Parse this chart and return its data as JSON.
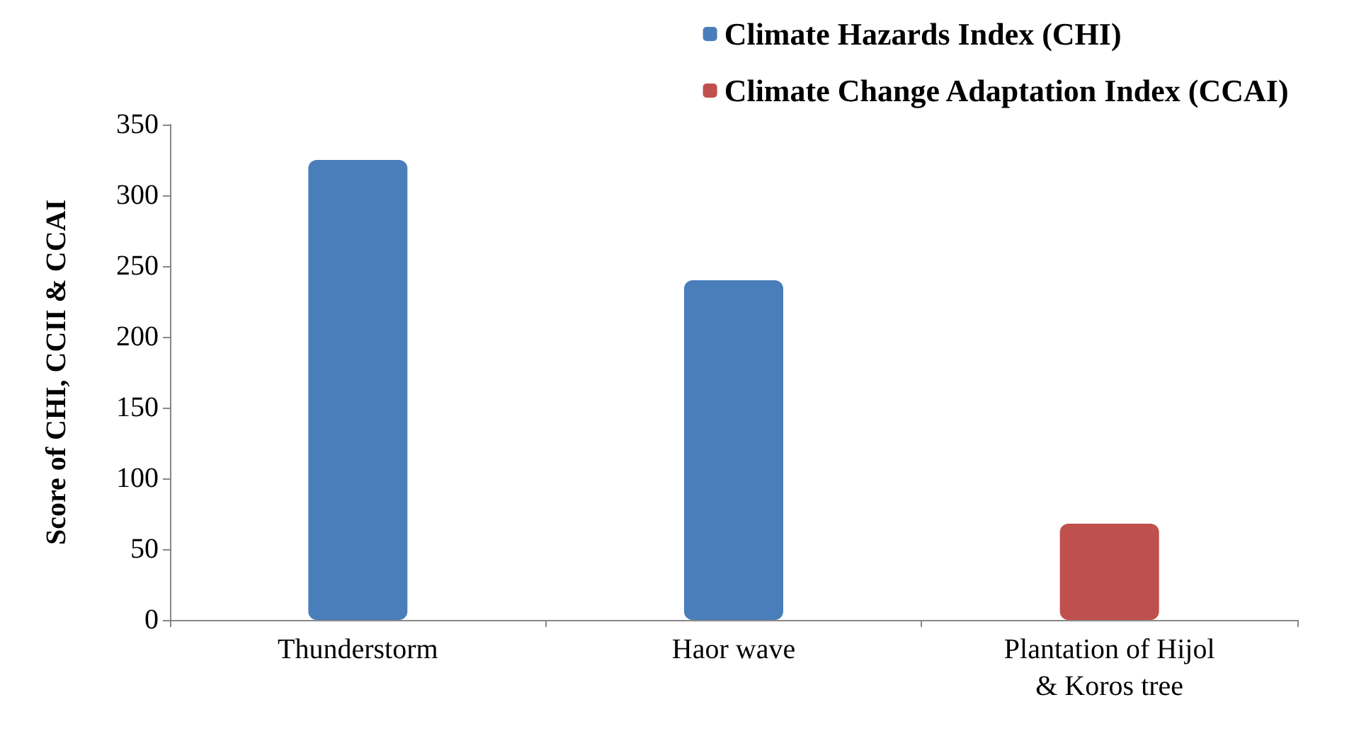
{
  "chart_data": {
    "type": "bar",
    "ylabel": "Score of CHI, CCII & CCAI",
    "categories": [
      "Thunderstorm",
      "Haor wave",
      "Plantation of Hijol\n& Koros tree"
    ],
    "series": [
      {
        "name": "Climate Hazards Index (CHI)",
        "color": "#4a7ebb",
        "values": [
          325,
          240,
          null
        ]
      },
      {
        "name": "Climate Change Adaptation Index (CCAI)",
        "color": "#c0504d",
        "values": [
          null,
          null,
          68
        ]
      }
    ],
    "ylim": [
      0,
      350
    ],
    "yticks": [
      0,
      50,
      100,
      150,
      200,
      250,
      300,
      350
    ],
    "grid": false,
    "legend": "top right"
  }
}
